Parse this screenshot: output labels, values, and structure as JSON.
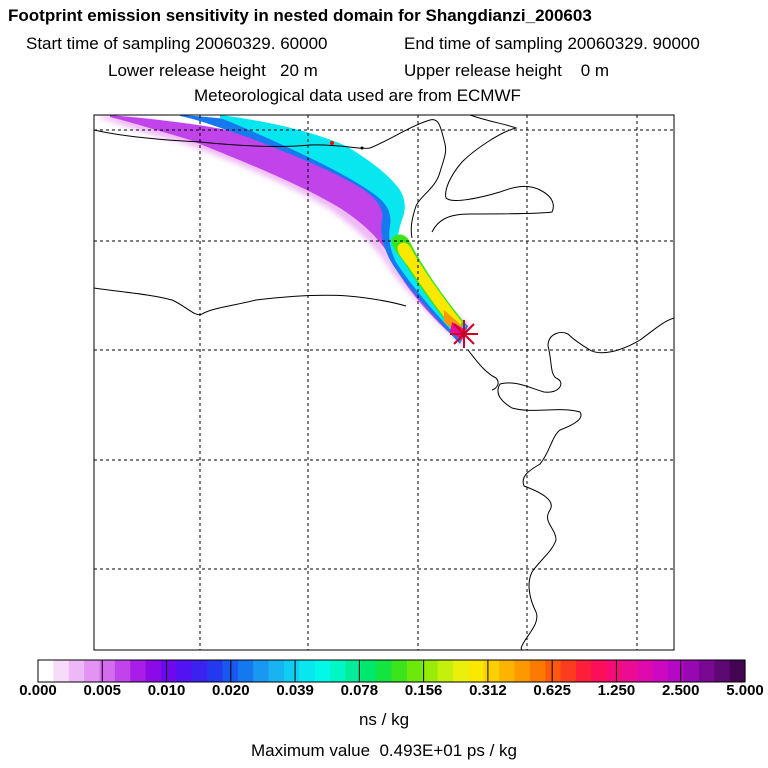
{
  "header": {
    "title": "Footprint emission sensitivity in nested domain for Shangdianzi_200603",
    "start_label": "Start time of sampling 20060329. 60000",
    "end_label": "End time of sampling 20060329. 90000",
    "lower_label": "Lower release height   20 m",
    "upper_label": "Upper release height    0 m",
    "met_label": "Meteorological data used are from ECMWF"
  },
  "chart_data": {
    "type": "heatmap",
    "title": "Footprint emission sensitivity in nested domain for Shangdianzi_200603",
    "colorbar": {
      "ticks": [
        "0.000",
        "0.005",
        "0.010",
        "0.020",
        "0.039",
        "0.078",
        "0.156",
        "0.312",
        "0.625",
        "1.250",
        "2.500",
        "5.000"
      ],
      "colors": [
        "#ffffff",
        "#f6dcfa",
        "#eeb8f6",
        "#e394f2",
        "#d56cee",
        "#c044ea",
        "#a91ee6",
        "#8c0ae8",
        "#6f08ef",
        "#5212f2",
        "#3a22f0",
        "#2438ee",
        "#1858ee",
        "#1478ee",
        "#1898f0",
        "#18b4f2",
        "#10cef2",
        "#08e6f0",
        "#04f8e8",
        "#00f6c4",
        "#00ee9a",
        "#00e86c",
        "#14e440",
        "#3ce41c",
        "#6ce80c",
        "#98ec08",
        "#c4f00c",
        "#eaf00c",
        "#fae800",
        "#fcd000",
        "#fcb400",
        "#fc9800",
        "#fc7a00",
        "#fc5a0a",
        "#fc3c1e",
        "#fc1e3a",
        "#fc0e5a",
        "#f60c78",
        "#ec0c94",
        "#de0aac",
        "#cc08c0",
        "#b408c4",
        "#9808b0",
        "#7a0894",
        "#5e0874",
        "#440652"
      ],
      "units": "ns / kg",
      "max_value_label": "Maximum value  0.493E+01 ps / kg"
    },
    "map": {
      "receptor": "Shangdianzi",
      "gridlines": "dashed",
      "plume_direction": "from north-west to the receptor at south-east"
    }
  }
}
